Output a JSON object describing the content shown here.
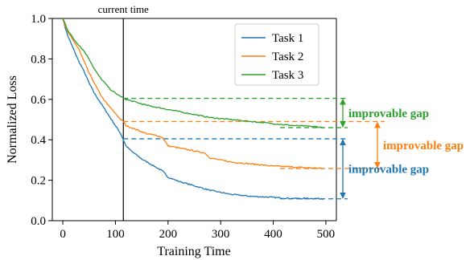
{
  "chart_data": {
    "type": "line",
    "xlabel": "Training  Time",
    "ylabel": "Normalized Loss",
    "xlim": [
      -20,
      520
    ],
    "ylim": [
      0.0,
      1.0
    ],
    "x_ticks": [
      0,
      100,
      200,
      300,
      400,
      500
    ],
    "y_ticks": [
      0.0,
      0.2,
      0.4,
      0.6,
      0.8,
      1.0
    ],
    "grid": false,
    "legend": {
      "placement": "top-right",
      "entries": [
        "Task 1",
        "Task 2",
        "Task 3"
      ]
    },
    "series": [
      {
        "name": "Task 1",
        "color": "#1f77b4",
        "x": [
          0,
          5,
          10,
          20,
          30,
          40,
          50,
          60,
          70,
          80,
          90,
          100,
          110,
          115,
          120,
          130,
          140,
          150,
          160,
          170,
          180,
          190,
          195,
          200,
          220,
          240,
          260,
          280,
          300,
          320,
          340,
          360,
          380,
          400,
          420,
          440,
          460,
          480,
          495
        ],
        "y": [
          1.0,
          0.95,
          0.91,
          0.85,
          0.79,
          0.74,
          0.68,
          0.63,
          0.59,
          0.55,
          0.51,
          0.47,
          0.43,
          0.4,
          0.37,
          0.345,
          0.325,
          0.305,
          0.29,
          0.275,
          0.26,
          0.245,
          0.23,
          0.215,
          0.195,
          0.18,
          0.165,
          0.15,
          0.14,
          0.13,
          0.125,
          0.12,
          0.118,
          0.115,
          0.112,
          0.11,
          0.11,
          0.11,
          0.108
        ]
      },
      {
        "name": "Task 2",
        "color": "#ff7f0e",
        "x": [
          0,
          5,
          10,
          20,
          30,
          40,
          50,
          60,
          70,
          80,
          90,
          100,
          110,
          115,
          120,
          140,
          160,
          180,
          190,
          200,
          220,
          250,
          270,
          280,
          300,
          320,
          340,
          360,
          380,
          400,
          420,
          440,
          460,
          480,
          495
        ],
        "y": [
          1.0,
          0.96,
          0.93,
          0.89,
          0.85,
          0.79,
          0.73,
          0.68,
          0.63,
          0.59,
          0.56,
          0.53,
          0.5,
          0.49,
          0.47,
          0.45,
          0.43,
          0.42,
          0.41,
          0.37,
          0.36,
          0.345,
          0.335,
          0.31,
          0.3,
          0.29,
          0.285,
          0.28,
          0.275,
          0.27,
          0.268,
          0.265,
          0.262,
          0.26,
          0.258
        ]
      },
      {
        "name": "Task 3",
        "color": "#2ca02c",
        "x": [
          0,
          5,
          10,
          20,
          30,
          40,
          50,
          60,
          70,
          80,
          90,
          100,
          110,
          115,
          120,
          140,
          160,
          180,
          200,
          220,
          240,
          260,
          280,
          300,
          320,
          340,
          360,
          380,
          400,
          420,
          440,
          460,
          480,
          495
        ],
        "y": [
          1.0,
          0.97,
          0.94,
          0.9,
          0.87,
          0.84,
          0.8,
          0.75,
          0.71,
          0.68,
          0.65,
          0.63,
          0.615,
          0.605,
          0.6,
          0.585,
          0.57,
          0.56,
          0.55,
          0.54,
          0.53,
          0.52,
          0.51,
          0.505,
          0.5,
          0.495,
          0.49,
          0.485,
          0.48,
          0.475,
          0.47,
          0.468,
          0.465,
          0.46
        ]
      }
    ],
    "current_time": {
      "x": 115,
      "label": "current time"
    },
    "gaps": [
      {
        "label": "improvable gap",
        "color": "#2ca02c",
        "y_top": 0.605,
        "y_bottom": 0.46
      },
      {
        "label": "improvable gap",
        "color": "#ff7f0e",
        "y_top": 0.49,
        "y_bottom": 0.258
      },
      {
        "label": "improvable gap",
        "color": "#1f77b4",
        "y_top": 0.405,
        "y_bottom": 0.108
      }
    ]
  }
}
